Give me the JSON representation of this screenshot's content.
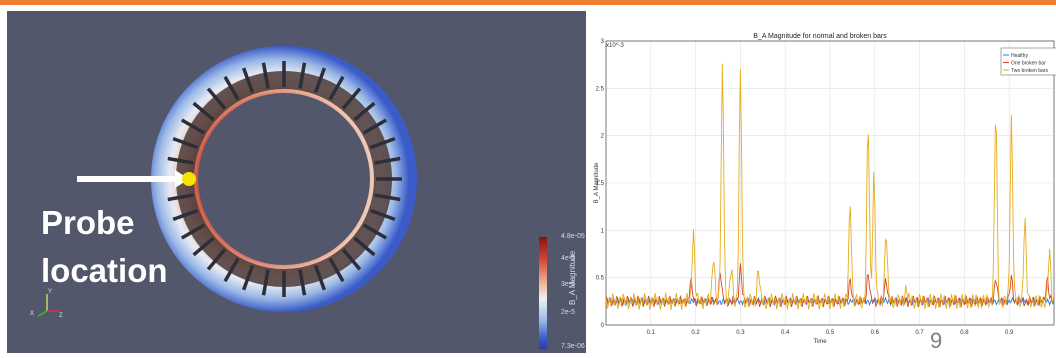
{
  "probe_label": {
    "line1": "Probe",
    "line2": "location"
  },
  "colorbar": {
    "title": "B_A Magnitude",
    "ticks": [
      "4.8e-05",
      "4e-5",
      "3e-5",
      "2e-5",
      "7.3e-06"
    ],
    "colors": [
      "#8c1010",
      "#d24633",
      "#ecae96",
      "#f0f0f0",
      "#98b8e8",
      "#3c5ccd",
      "#2a3fa8"
    ]
  },
  "axes_triad": {
    "x": "X",
    "y": "Y",
    "z": "Z"
  },
  "slide_number": "9",
  "chart_data": {
    "type": "line",
    "title": "B_A Magnitude for normal and broken bars",
    "xlabel": "Time",
    "ylabel": "B_A Magnitude",
    "y_exponent": "x10^-3",
    "xlim": [
      0,
      1
    ],
    "ylim": [
      0,
      3
    ],
    "x_ticks": [
      "0.1",
      "0.2",
      "0.3",
      "0.4",
      "0.5",
      "0.6",
      "0.7",
      "0.8",
      "0.9"
    ],
    "y_ticks": [
      "0",
      "0.5",
      "1",
      "1.5",
      "2",
      "2.5",
      "3"
    ],
    "grid": true,
    "legend_position": "top-right",
    "series": [
      {
        "name": "Healthy",
        "color": "#2a7bd4",
        "baseline": 0.25,
        "amp": 0.025,
        "peaks": []
      },
      {
        "name": "One broken bar",
        "color": "#d6451c",
        "baseline": 0.25,
        "amp": 0.04,
        "peaks": [
          [
            0.19,
            0.45
          ],
          [
            0.255,
            0.55
          ],
          [
            0.3,
            0.62
          ],
          [
            0.545,
            0.45
          ],
          [
            0.585,
            0.55
          ],
          [
            0.625,
            0.5
          ],
          [
            0.87,
            0.5
          ],
          [
            0.905,
            0.5
          ],
          [
            0.985,
            0.5
          ]
        ]
      },
      {
        "name": "Two broken bars",
        "color": "#e7ad1e",
        "baseline": 0.25,
        "amp": 0.06,
        "peaks": [
          [
            0.195,
            1.0
          ],
          [
            0.24,
            0.75
          ],
          [
            0.26,
            2.75
          ],
          [
            0.28,
            0.6
          ],
          [
            0.3,
            2.65
          ],
          [
            0.34,
            0.6
          ],
          [
            0.545,
            1.3
          ],
          [
            0.585,
            2.1
          ],
          [
            0.598,
            1.6
          ],
          [
            0.625,
            1.0
          ],
          [
            0.67,
            0.4
          ],
          [
            0.87,
            2.25
          ],
          [
            0.905,
            2.2
          ],
          [
            0.935,
            1.1
          ],
          [
            0.99,
            0.75
          ]
        ]
      }
    ]
  }
}
